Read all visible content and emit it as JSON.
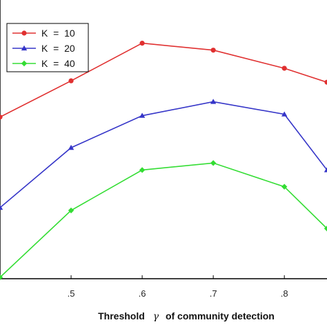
{
  "chart_data": {
    "type": "line",
    "title": "",
    "xlabel_parts": [
      "Threshold",
      "γ",
      "of community detection"
    ],
    "ylabel": "",
    "xlim": [
      0.4,
      0.86
    ],
    "ylim": [
      0,
      10
    ],
    "x_tick_values": [
      0.5,
      0.6,
      0.7,
      0.8
    ],
    "x_tick_labels": [
      ".5",
      ".6",
      ".7",
      ".8"
    ],
    "grid": false,
    "legend_placement": "top-left",
    "series": [
      {
        "name": "K  =  10",
        "color": "#e03030",
        "marker": "circle",
        "x": [
          0.4,
          0.5,
          0.6,
          0.7,
          0.8,
          0.86
        ],
        "y": [
          5.8,
          7.1,
          8.45,
          8.2,
          7.55,
          7.05
        ]
      },
      {
        "name": "K  =  20",
        "color": "#3535c8",
        "marker": "triangle",
        "x": [
          0.4,
          0.5,
          0.6,
          0.7,
          0.8,
          0.86
        ],
        "y": [
          2.55,
          4.7,
          5.85,
          6.35,
          5.9,
          3.9
        ]
      },
      {
        "name": "K  =  40",
        "color": "#33dd33",
        "marker": "diamond",
        "x": [
          0.4,
          0.5,
          0.6,
          0.7,
          0.8,
          0.86
        ],
        "y": [
          0.05,
          2.45,
          3.9,
          4.15,
          3.3,
          1.8
        ]
      }
    ]
  }
}
